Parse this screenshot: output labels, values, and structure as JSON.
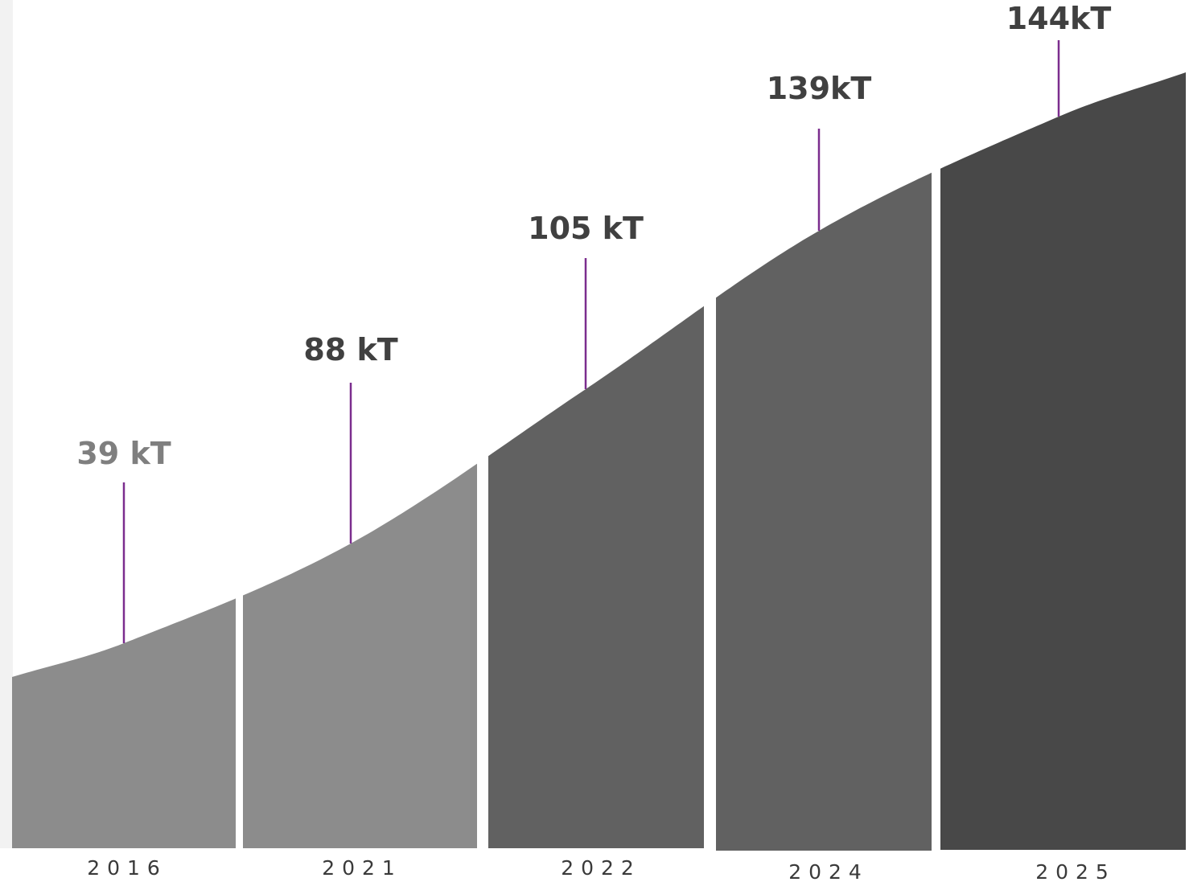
{
  "chart_data": {
    "type": "area",
    "title": "",
    "xlabel": "",
    "ylabel": "",
    "unit": "kT",
    "categories": [
      "2016",
      "2021",
      "2022",
      "2024",
      "2025"
    ],
    "values": [
      39,
      88,
      105,
      139,
      144
    ],
    "data_labels": [
      "39 kT",
      "88 kT",
      "105 kT",
      "139kT",
      "144kT"
    ],
    "grid": false,
    "legend": "none",
    "colors": {
      "segments": [
        "#8c8c8c",
        "#8c8c8c",
        "#616161",
        "#616161",
        "#484848"
      ],
      "labels": [
        "#7f7f7f",
        "#404040",
        "#404040",
        "#404040",
        "#404040"
      ],
      "leader_line": "#7b2d8e",
      "background": "#ffffff"
    }
  }
}
